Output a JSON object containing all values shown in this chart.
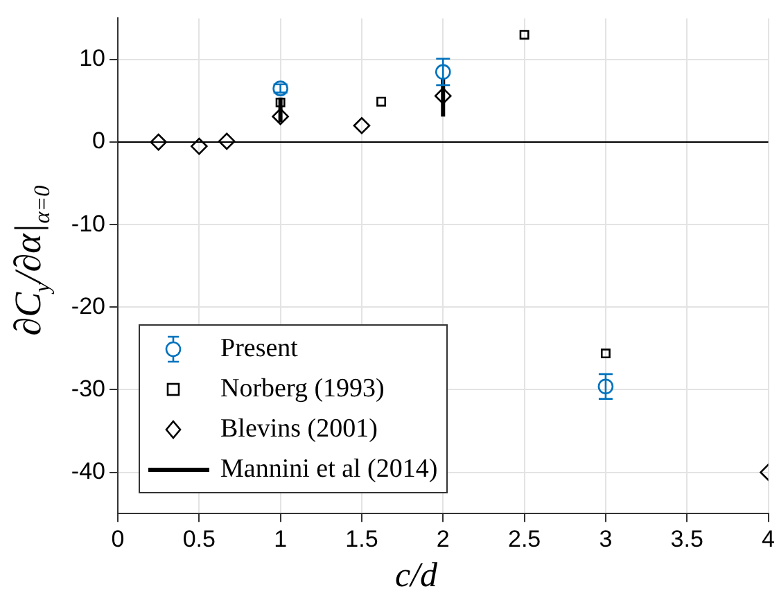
{
  "chart_data": {
    "type": "scatter",
    "xlabel": "c/d",
    "ylabel": "∂C$_{y}$/∂α|$_{α=0}$",
    "xlim": [
      0,
      4
    ],
    "xticks": [
      0,
      0.5,
      1,
      1.5,
      2,
      2.5,
      3,
      3.5,
      4
    ],
    "ylim": [
      -45,
      15
    ],
    "yticks": [
      -40,
      -30,
      -20,
      -10,
      0,
      10
    ],
    "grid": true,
    "legend": "bottom left",
    "ref_lines": [
      {
        "axis": "y",
        "value": 0,
        "color": "#000000"
      }
    ],
    "series": [
      {
        "name": "Present",
        "marker": "circle",
        "color": "#0072bd",
        "x": [
          1,
          2,
          3
        ],
        "values": [
          6.5,
          8.5,
          -29.6
        ],
        "errors": [
          0.5,
          1.6,
          1.5
        ]
      },
      {
        "name": "Norberg (1993)",
        "marker": "square",
        "color": "#000000",
        "x": [
          1,
          1.62,
          2.5,
          3
        ],
        "values": [
          4.8,
          4.9,
          13,
          -25.6
        ]
      },
      {
        "name": "Blevins (2001)",
        "marker": "diamond",
        "color": "#000000",
        "x": [
          0.25,
          0.5,
          0.67,
          1,
          1.5,
          2,
          4
        ],
        "values": [
          0,
          -0.5,
          0.1,
          3.1,
          2,
          5.6,
          -40
        ]
      },
      {
        "name": "Mannini et al (2014)",
        "type": "line",
        "marker": "none",
        "line_style": "solid",
        "color": "#000000",
        "x": [
          1,
          1,
          1.5,
          2,
          2
        ],
        "values": [
          2.4,
          5.4,
          null,
          3.1,
          7.8
        ]
      }
    ]
  }
}
